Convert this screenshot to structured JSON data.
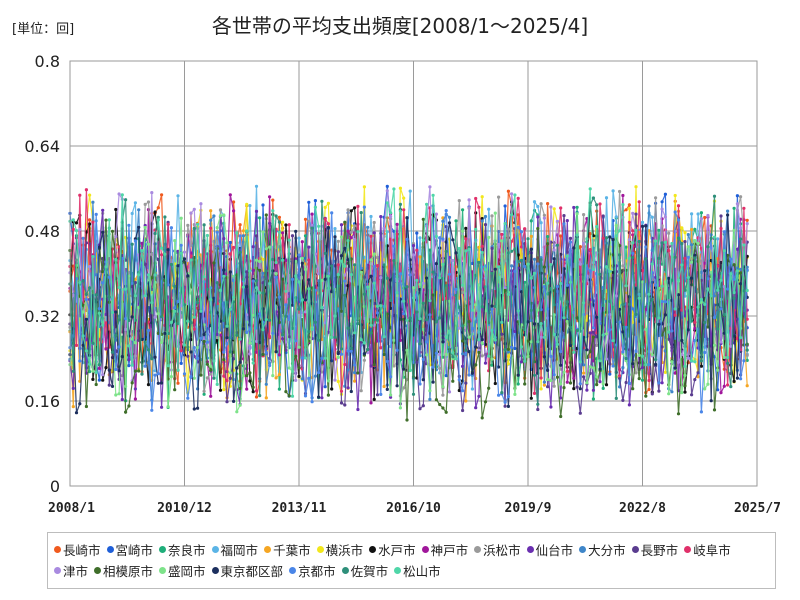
{
  "chart_data": {
    "type": "line",
    "title": "各世帯の平均支出頻度[2008/1～2025/4]",
    "unit_label": "[単位：回]",
    "xlabel": "",
    "ylabel": "",
    "x_ticks": [
      "2008/1",
      "2010/12",
      "2013/11",
      "2016/10",
      "2019/9",
      "2022/8",
      "2025/7"
    ],
    "y_ticks": [
      "0",
      "0.16",
      "0.32",
      "0.48",
      "0.64",
      "0.8"
    ],
    "ylim": [
      0,
      0.8
    ],
    "xlim": [
      "2008-01",
      "2025-07"
    ],
    "grid": true,
    "legend_position": "bottom",
    "series": [
      {
        "name": "長崎市",
        "color": "#f05a1e"
      },
      {
        "name": "宮崎市",
        "color": "#1f5fd8"
      },
      {
        "name": "奈良市",
        "color": "#1fae7a"
      },
      {
        "name": "福岡市",
        "color": "#5bb4e6"
      },
      {
        "name": "千葉市",
        "color": "#f5a623"
      },
      {
        "name": "横浜市",
        "color": "#f2e71c"
      },
      {
        "name": "水戸市",
        "color": "#111111"
      },
      {
        "name": "神戸市",
        "color": "#a0179b"
      },
      {
        "name": "浜松市",
        "color": "#9a9a9a"
      },
      {
        "name": "仙台市",
        "color": "#6a2fb0"
      },
      {
        "name": "大分市",
        "color": "#3f86c9"
      },
      {
        "name": "長野市",
        "color": "#5a3c8f"
      },
      {
        "name": "岐阜市",
        "color": "#e0306a"
      },
      {
        "name": "津市",
        "color": "#a98ae0"
      },
      {
        "name": "相模原市",
        "color": "#3f6e2a"
      },
      {
        "name": "盛岡市",
        "color": "#7ee38a"
      },
      {
        "name": "東京都区部",
        "color": "#1c2f5e"
      },
      {
        "name": "京都市",
        "color": "#4a86e8"
      },
      {
        "name": "佐賀市",
        "color": "#2e8f7a"
      },
      {
        "name": "松山市",
        "color": "#4fd6a8"
      }
    ],
    "value_range_note": ""
  }
}
